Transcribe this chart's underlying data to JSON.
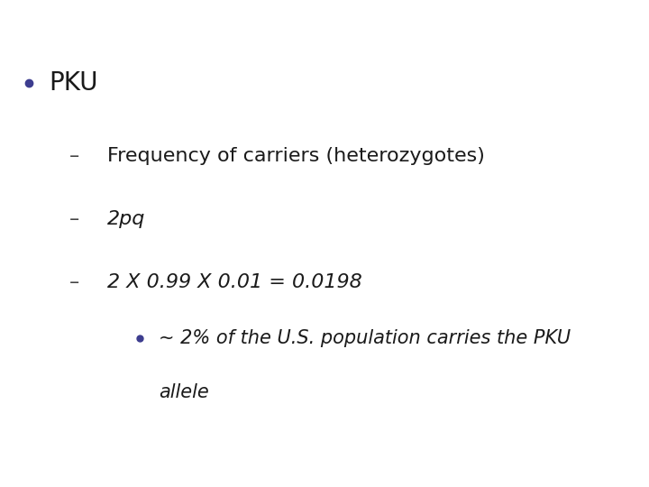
{
  "background_color": "#ffffff",
  "bullet_color": "#3d3d8f",
  "text_color": "#1a1a1a",
  "dash_color": "#444444",
  "bullet1": "PKU",
  "bullet1_fontsize": 20,
  "dash1_text": "Frequency of carriers (heterozygotes)",
  "dash1_fontsize": 16,
  "dash2_text": "2pq",
  "dash2_fontsize": 16,
  "dash3_text": "2 X 0.99 X 0.01 = 0.0198",
  "dash3_fontsize": 16,
  "sub_bullet_text1": "~ 2% of the U.S. population carries the PKU",
  "sub_bullet_text2": "allele",
  "sub_bullet_fontsize": 15,
  "figwidth": 7.2,
  "figheight": 5.4,
  "dpi": 100
}
